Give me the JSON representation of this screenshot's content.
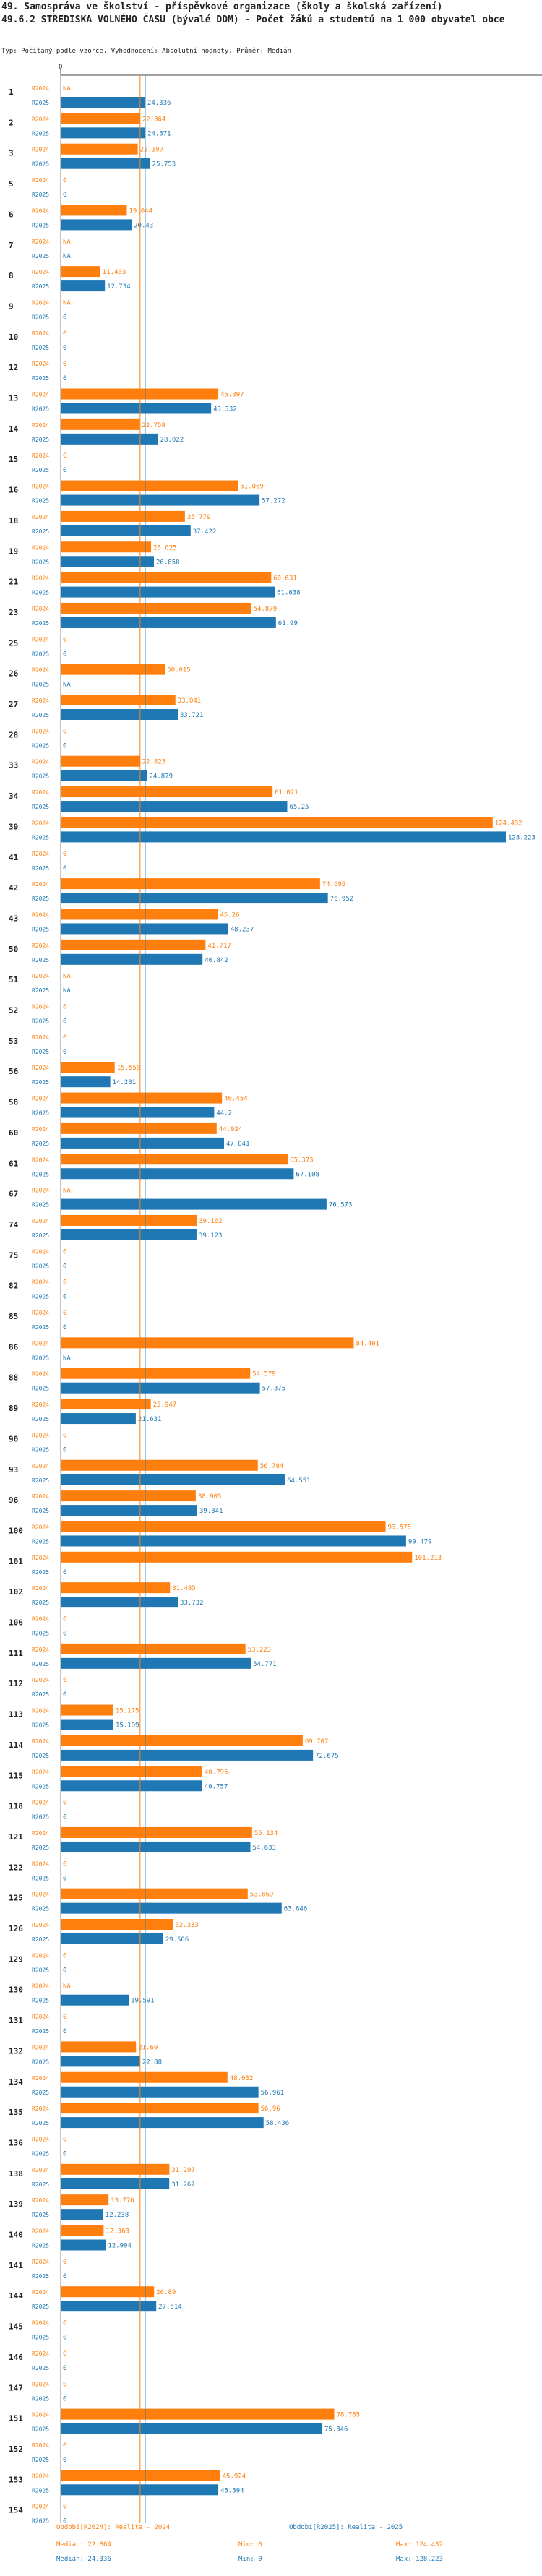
{
  "header": {
    "title_line1": "49. Samospráva ve školství - příspěvkové organizace (školy a školská zařízení)",
    "title_line2": "49.6.2 STŘEDISKA VOLNÉHO ČASU (bývalé DDM) - Počet žáků a studentů na 1 000 obyvatel obce",
    "subtitle": "Typ: Počítaný podle vzorce, Vyhodnocení: Absolutní hodnoty, Průměr: Medián"
  },
  "chart_data": {
    "type": "bar",
    "orientation": "horizontal",
    "title": "49.6.2 STŘEDISKA VOLNÉHO ČASU (bývalé DDM) - Počet žáků a studentů na 1 000 obyvatel obce",
    "xlim": [
      0,
      128.223
    ],
    "series": [
      {
        "name": "R2024",
        "color": "#ff7f0e"
      },
      {
        "name": "R2025",
        "color": "#1f77b4"
      }
    ],
    "medians": {
      "R2024": 22.864,
      "R2025": 24.336
    },
    "groups": [
      {
        "id": "1",
        "r2024": null,
        "r2024_label": "NA",
        "r2025": 24.336,
        "r2025_label": "24.336"
      },
      {
        "id": "2",
        "r2024": 22.864,
        "r2024_label": "22.864",
        "r2025": 24.371,
        "r2025_label": "24.371"
      },
      {
        "id": "3",
        "r2024": 22.197,
        "r2024_label": "22.197",
        "r2025": 25.753,
        "r2025_label": "25.753"
      },
      {
        "id": "5",
        "r2024": 0,
        "r2024_label": "0",
        "r2025": 0,
        "r2025_label": "0"
      },
      {
        "id": "6",
        "r2024": 19.044,
        "r2024_label": "19.044",
        "r2025": 20.43,
        "r2025_label": "20.43"
      },
      {
        "id": "7",
        "r2024": null,
        "r2024_label": "NA",
        "r2025": null,
        "r2025_label": "NA"
      },
      {
        "id": "8",
        "r2024": 11.403,
        "r2024_label": "11.403",
        "r2025": 12.734,
        "r2025_label": "12.734"
      },
      {
        "id": "9",
        "r2024": null,
        "r2024_label": "NA",
        "r2025": 0,
        "r2025_label": "0"
      },
      {
        "id": "10",
        "r2024": 0,
        "r2024_label": "0",
        "r2025": 0,
        "r2025_label": "0"
      },
      {
        "id": "12",
        "r2024": 0,
        "r2024_label": "0",
        "r2025": 0,
        "r2025_label": "0"
      },
      {
        "id": "13",
        "r2024": 45.397,
        "r2024_label": "45.397",
        "r2025": 43.332,
        "r2025_label": "43.332"
      },
      {
        "id": "14",
        "r2024": 22.758,
        "r2024_label": "22.758",
        "r2025": 28.022,
        "r2025_label": "28.022"
      },
      {
        "id": "15",
        "r2024": 0,
        "r2024_label": "0",
        "r2025": 0,
        "r2025_label": "0"
      },
      {
        "id": "16",
        "r2024": 51.069,
        "r2024_label": "51.069",
        "r2025": 57.272,
        "r2025_label": "57.272"
      },
      {
        "id": "18",
        "r2024": 35.779,
        "r2024_label": "35.779",
        "r2025": 37.422,
        "r2025_label": "37.422"
      },
      {
        "id": "19",
        "r2024": 26.025,
        "r2024_label": "26.025",
        "r2025": 26.858,
        "r2025_label": "26.858"
      },
      {
        "id": "21",
        "r2024": 60.631,
        "r2024_label": "60.631",
        "r2025": 61.638,
        "r2025_label": "61.638"
      },
      {
        "id": "23",
        "r2024": 54.879,
        "r2024_label": "54.879",
        "r2025": 61.99,
        "r2025_label": "61.99"
      },
      {
        "id": "25",
        "r2024": 0,
        "r2024_label": "0",
        "r2025": 0,
        "r2025_label": "0"
      },
      {
        "id": "26",
        "r2024": 30.015,
        "r2024_label": "30.015",
        "r2025": null,
        "r2025_label": "NA"
      },
      {
        "id": "27",
        "r2024": 33.041,
        "r2024_label": "33.041",
        "r2025": 33.721,
        "r2025_label": "33.721"
      },
      {
        "id": "28",
        "r2024": 0,
        "r2024_label": "0",
        "r2025": 0,
        "r2025_label": "0"
      },
      {
        "id": "33",
        "r2024": 22.823,
        "r2024_label": "22.823",
        "r2025": 24.879,
        "r2025_label": "24.879"
      },
      {
        "id": "34",
        "r2024": 61.021,
        "r2024_label": "61.021",
        "r2025": 65.25,
        "r2025_label": "65.25"
      },
      {
        "id": "39",
        "r2024": 124.432,
        "r2024_label": "124.432",
        "r2025": 128.223,
        "r2025_label": "128.223"
      },
      {
        "id": "41",
        "r2024": 0,
        "r2024_label": "0",
        "r2025": 0,
        "r2025_label": "0"
      },
      {
        "id": "42",
        "r2024": 74.695,
        "r2024_label": "74.695",
        "r2025": 76.952,
        "r2025_label": "76.952"
      },
      {
        "id": "43",
        "r2024": 45.26,
        "r2024_label": "45.26",
        "r2025": 48.237,
        "r2025_label": "48.237"
      },
      {
        "id": "50",
        "r2024": 41.717,
        "r2024_label": "41.717",
        "r2025": 40.842,
        "r2025_label": "40.842"
      },
      {
        "id": "51",
        "r2024": null,
        "r2024_label": "NA",
        "r2025": null,
        "r2025_label": "NA"
      },
      {
        "id": "52",
        "r2024": 0,
        "r2024_label": "0",
        "r2025": 0,
        "r2025_label": "0"
      },
      {
        "id": "53",
        "r2024": 0,
        "r2024_label": "0",
        "r2025": 0,
        "r2025_label": "0"
      },
      {
        "id": "56",
        "r2024": 15.559,
        "r2024_label": "15.559",
        "r2025": 14.281,
        "r2025_label": "14.281"
      },
      {
        "id": "58",
        "r2024": 46.454,
        "r2024_label": "46.454",
        "r2025": 44.2,
        "r2025_label": "44.2"
      },
      {
        "id": "60",
        "r2024": 44.924,
        "r2024_label": "44.924",
        "r2025": 47.041,
        "r2025_label": "47.041"
      },
      {
        "id": "61",
        "r2024": 65.373,
        "r2024_label": "65.373",
        "r2025": 67.108,
        "r2025_label": "67.108"
      },
      {
        "id": "67",
        "r2024": null,
        "r2024_label": "NA",
        "r2025": 76.573,
        "r2025_label": "76.573"
      },
      {
        "id": "74",
        "r2024": 39.162,
        "r2024_label": "39.162",
        "r2025": 39.123,
        "r2025_label": "39.123"
      },
      {
        "id": "75",
        "r2024": 0,
        "r2024_label": "0",
        "r2025": 0,
        "r2025_label": "0"
      },
      {
        "id": "82",
        "r2024": 0,
        "r2024_label": "0",
        "r2025": 0,
        "r2025_label": "0"
      },
      {
        "id": "85",
        "r2024": 0,
        "r2024_label": "0",
        "r2025": 0,
        "r2025_label": "0"
      },
      {
        "id": "86",
        "r2024": 84.401,
        "r2024_label": "84.401",
        "r2025": null,
        "r2025_label": "NA"
      },
      {
        "id": "88",
        "r2024": 54.579,
        "r2024_label": "54.579",
        "r2025": 57.375,
        "r2025_label": "57.375"
      },
      {
        "id": "89",
        "r2024": 25.947,
        "r2024_label": "25.947",
        "r2025": 21.631,
        "r2025_label": "21.631"
      },
      {
        "id": "90",
        "r2024": 0,
        "r2024_label": "0",
        "r2025": 0,
        "r2025_label": "0"
      },
      {
        "id": "93",
        "r2024": 56.784,
        "r2024_label": "56.784",
        "r2025": 64.551,
        "r2025_label": "64.551"
      },
      {
        "id": "96",
        "r2024": 38.905,
        "r2024_label": "38.905",
        "r2025": 39.341,
        "r2025_label": "39.341"
      },
      {
        "id": "100",
        "r2024": 93.575,
        "r2024_label": "93.575",
        "r2025": 99.479,
        "r2025_label": "99.479"
      },
      {
        "id": "101",
        "r2024": 101.213,
        "r2024_label": "101.213",
        "r2025": 0,
        "r2025_label": "0"
      },
      {
        "id": "102",
        "r2024": 31.485,
        "r2024_label": "31.485",
        "r2025": 33.732,
        "r2025_label": "33.732"
      },
      {
        "id": "106",
        "r2024": 0,
        "r2024_label": "0",
        "r2025": 0,
        "r2025_label": "0"
      },
      {
        "id": "111",
        "r2024": 53.223,
        "r2024_label": "53.223",
        "r2025": 54.771,
        "r2025_label": "54.771"
      },
      {
        "id": "112",
        "r2024": 0,
        "r2024_label": "0",
        "r2025": 0,
        "r2025_label": "0"
      },
      {
        "id": "113",
        "r2024": 15.175,
        "r2024_label": "15.175",
        "r2025": 15.199,
        "r2025_label": "15.199"
      },
      {
        "id": "114",
        "r2024": 69.707,
        "r2024_label": "69.707",
        "r2025": 72.675,
        "r2025_label": "72.675"
      },
      {
        "id": "115",
        "r2024": 40.796,
        "r2024_label": "40.796",
        "r2025": 40.757,
        "r2025_label": "40.757"
      },
      {
        "id": "118",
        "r2024": 0,
        "r2024_label": "0",
        "r2025": 0,
        "r2025_label": "0"
      },
      {
        "id": "121",
        "r2024": 55.134,
        "r2024_label": "55.134",
        "r2025": 54.633,
        "r2025_label": "54.633"
      },
      {
        "id": "122",
        "r2024": 0,
        "r2024_label": "0",
        "r2025": 0,
        "r2025_label": "0"
      },
      {
        "id": "125",
        "r2024": 53.869,
        "r2024_label": "53.869",
        "r2025": 63.646,
        "r2025_label": "63.646"
      },
      {
        "id": "126",
        "r2024": 32.333,
        "r2024_label": "32.333",
        "r2025": 29.506,
        "r2025_label": "29.506"
      },
      {
        "id": "129",
        "r2024": 0,
        "r2024_label": "0",
        "r2025": 0,
        "r2025_label": "0"
      },
      {
        "id": "130",
        "r2024": null,
        "r2024_label": "NA",
        "r2025": 19.591,
        "r2025_label": "19.591"
      },
      {
        "id": "131",
        "r2024": 0,
        "r2024_label": "0",
        "r2025": 0,
        "r2025_label": "0"
      },
      {
        "id": "132",
        "r2024": 21.69,
        "r2024_label": "21.69",
        "r2025": 22.88,
        "r2025_label": "22.88"
      },
      {
        "id": "134",
        "r2024": 48.032,
        "r2024_label": "48.032",
        "r2025": 56.961,
        "r2025_label": "56.961"
      },
      {
        "id": "135",
        "r2024": 56.96,
        "r2024_label": "56.96",
        "r2025": 58.436,
        "r2025_label": "58.436"
      },
      {
        "id": "136",
        "r2024": 0,
        "r2024_label": "0",
        "r2025": 0,
        "r2025_label": "0"
      },
      {
        "id": "138",
        "r2024": 31.297,
        "r2024_label": "31.297",
        "r2025": 31.267,
        "r2025_label": "31.267"
      },
      {
        "id": "139",
        "r2024": 13.776,
        "r2024_label": "13.776",
        "r2025": 12.238,
        "r2025_label": "12.238"
      },
      {
        "id": "140",
        "r2024": 12.363,
        "r2024_label": "12.363",
        "r2025": 12.994,
        "r2025_label": "12.994"
      },
      {
        "id": "141",
        "r2024": 0,
        "r2024_label": "0",
        "r2025": 0,
        "r2025_label": "0"
      },
      {
        "id": "144",
        "r2024": 26.89,
        "r2024_label": "26.89",
        "r2025": 27.514,
        "r2025_label": "27.514"
      },
      {
        "id": "145",
        "r2024": 0,
        "r2024_label": "0",
        "r2025": 0,
        "r2025_label": "0"
      },
      {
        "id": "146",
        "r2024": 0,
        "r2024_label": "0",
        "r2025": 0,
        "r2025_label": "0"
      },
      {
        "id": "147",
        "r2024": 0,
        "r2024_label": "0",
        "r2025": 0,
        "r2025_label": "0"
      },
      {
        "id": "151",
        "r2024": 78.785,
        "r2024_label": "78.785",
        "r2025": 75.346,
        "r2025_label": "75.346"
      },
      {
        "id": "152",
        "r2024": 0,
        "r2024_label": "0",
        "r2025": 0,
        "r2025_label": "0"
      },
      {
        "id": "153",
        "r2024": 45.924,
        "r2024_label": "45.924",
        "r2025": 45.394,
        "r2025_label": "45.394"
      },
      {
        "id": "154",
        "r2024": 0,
        "r2024_label": "0",
        "r2025": 0,
        "r2025_label": "0"
      }
    ]
  },
  "legend": {
    "orange": {
      "series": "Období[R2024]: Realita - 2024",
      "median": "Medián: 22.864",
      "min": "Min: 0",
      "max": "Max: 124.432"
    },
    "blue": {
      "series": "Období[R2025]: Realita - 2025",
      "median": "Medián: 24.336",
      "min": "Min: 0",
      "max": "Max: 128.223"
    }
  },
  "colors": {
    "r2024": "#ff7f0e",
    "r2025": "#1f77b4"
  }
}
